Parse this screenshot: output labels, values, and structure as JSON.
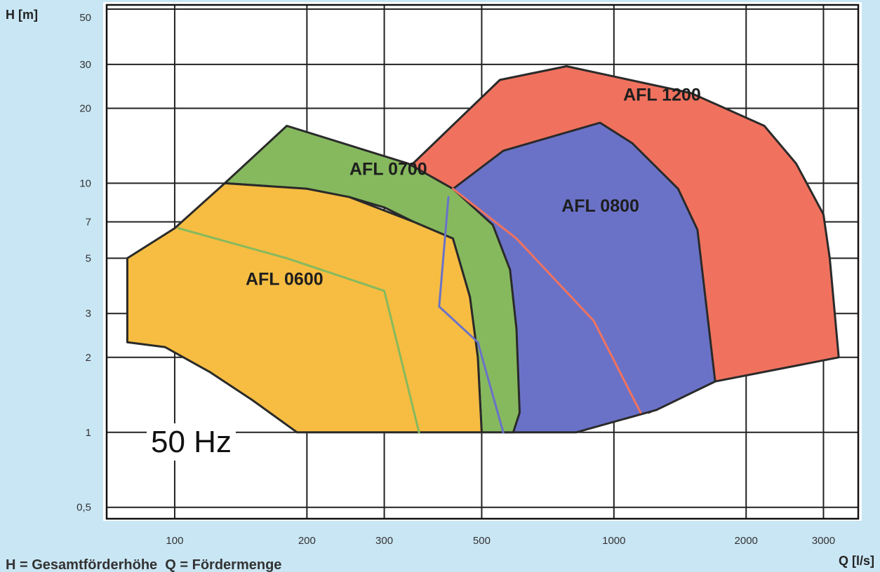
{
  "chart_data": {
    "type": "area",
    "x_scale": "log",
    "y_scale": "log",
    "xlim": [
      70,
      3600
    ],
    "ylim": [
      0.45,
      52
    ],
    "ylabel": "H [m]",
    "xlabel": "Q [l/s]",
    "caption": "H = Gesamtförderhöhe  Q = Fördermenge",
    "annotation": "50 Hz",
    "grid": true,
    "x_ticks": [
      {
        "value": 100,
        "label": "100"
      },
      {
        "value": 200,
        "label": "200"
      },
      {
        "value": 300,
        "label": "300"
      },
      {
        "value": 500,
        "label": "500"
      },
      {
        "value": 1000,
        "label": "1000"
      },
      {
        "value": 2000,
        "label": "2000"
      },
      {
        "value": 3000,
        "label": "3000"
      }
    ],
    "y_ticks": [
      {
        "value": 0.5,
        "label": "0,5"
      },
      {
        "value": 1,
        "label": "1"
      },
      {
        "value": 2,
        "label": "2"
      },
      {
        "value": 3,
        "label": "3"
      },
      {
        "value": 5,
        "label": "5"
      },
      {
        "value": 7,
        "label": "7"
      },
      {
        "value": 10,
        "label": "10"
      },
      {
        "value": 20,
        "label": "20"
      },
      {
        "value": 30,
        "label": "30"
      },
      {
        "value": 50,
        "label": "50"
      }
    ],
    "series": [
      {
        "name": "AFL 1200",
        "color": "#f0725e",
        "label_at": [
          1050,
          21.5
        ],
        "points": [
          [
            340,
            11.5
          ],
          [
            550,
            26
          ],
          [
            780,
            29.5
          ],
          [
            1500,
            23
          ],
          [
            2200,
            17
          ],
          [
            2600,
            12
          ],
          [
            3000,
            7.5
          ],
          [
            3100,
            5
          ],
          [
            3250,
            2.0
          ],
          [
            1700,
            1.6
          ],
          [
            1200,
            1.2
          ]
        ]
      },
      {
        "name": "AFL 0800",
        "color": "#6a72c8",
        "label_at": [
          760,
          7.7
        ],
        "points": [
          [
            410,
            8.9
          ],
          [
            560,
            13.5
          ],
          [
            930,
            17.5
          ],
          [
            1100,
            14.5
          ],
          [
            1400,
            9.5
          ],
          [
            1550,
            6.5
          ],
          [
            1700,
            1.6
          ],
          [
            1250,
            1.23
          ],
          [
            820,
            1.0
          ],
          [
            560,
            1.0
          ]
        ]
      },
      {
        "name": "AFL 0700",
        "color": "#86b95e",
        "label_at": [
          250,
          10.8
        ],
        "points": [
          [
            130,
            10
          ],
          [
            180,
            17
          ],
          [
            340,
            12
          ],
          [
            430,
            9.5
          ],
          [
            530,
            6.8
          ],
          [
            580,
            4.5
          ],
          [
            600,
            2.6
          ],
          [
            610,
            1.2
          ],
          [
            590,
            1.0
          ],
          [
            500,
            1.0
          ],
          [
            490,
            2.0
          ],
          [
            470,
            3.5
          ],
          [
            430,
            6.0
          ],
          [
            350,
            7.0
          ],
          [
            300,
            8.0
          ],
          [
            250,
            8.8
          ],
          [
            200,
            9.5
          ]
        ]
      },
      {
        "name": "AFL 0600",
        "color": "#f6bd42",
        "label_at": [
          145,
          3.9
        ],
        "points": [
          [
            78,
            5.0
          ],
          [
            100,
            6.6
          ],
          [
            130,
            10
          ],
          [
            200,
            9.5
          ],
          [
            250,
            8.8
          ],
          [
            350,
            7.0
          ],
          [
            430,
            6.0
          ],
          [
            470,
            3.5
          ],
          [
            490,
            2.0
          ],
          [
            500,
            1.0
          ],
          [
            190,
            1.0
          ],
          [
            150,
            1.35
          ],
          [
            120,
            1.75
          ],
          [
            95,
            2.2
          ],
          [
            78,
            2.3
          ]
        ]
      }
    ],
    "curves": [
      {
        "color": "#86b95e",
        "points": [
          [
            102,
            6.6
          ],
          [
            180,
            5.0
          ],
          [
            300,
            3.7
          ],
          [
            360,
            1.0
          ]
        ]
      },
      {
        "color": "#6a72c8",
        "points": [
          [
            420,
            8.8
          ],
          [
            400,
            3.2
          ],
          [
            490,
            2.3
          ],
          [
            560,
            1.0
          ]
        ]
      },
      {
        "color": "#f0725e",
        "points": [
          [
            430,
            9.5
          ],
          [
            600,
            6.0
          ],
          [
            900,
            2.8
          ],
          [
            1150,
            1.2
          ]
        ]
      }
    ]
  }
}
